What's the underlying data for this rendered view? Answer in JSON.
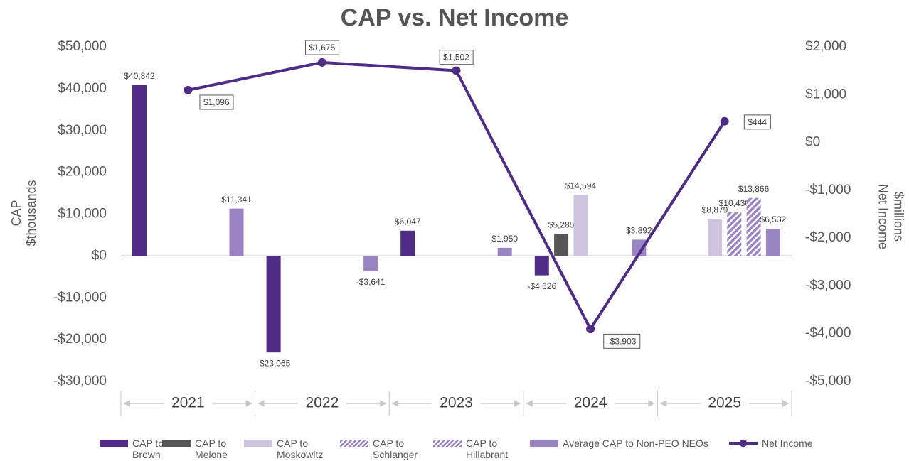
{
  "chart_data": {
    "type": "bar_line",
    "title": "CAP vs. Net Income",
    "ylabel": "CAP",
    "ylabel_unit": "$thousands",
    "y2label": "Net Income",
    "y2label_unit": "$millions",
    "categories": [
      "2021",
      "2022",
      "2023",
      "2024",
      "2025"
    ],
    "ylim": [
      -30000,
      50000
    ],
    "yticks": [
      {
        "value": 50000,
        "label": "$50,000"
      },
      {
        "value": 40000,
        "label": "$40,000"
      },
      {
        "value": 30000,
        "label": "$30,000"
      },
      {
        "value": 20000,
        "label": "$20,000"
      },
      {
        "value": 10000,
        "label": "$10,000"
      },
      {
        "value": 0,
        "label": "$0"
      },
      {
        "value": -10000,
        "label": "-$10,000"
      },
      {
        "value": -20000,
        "label": "-$20,000"
      },
      {
        "value": -30000,
        "label": "-$30,000"
      }
    ],
    "y2lim": [
      -5000,
      2000
    ],
    "y2ticks": [
      {
        "value": 2000,
        "label": "$2,000"
      },
      {
        "value": 1000,
        "label": "$1,000"
      },
      {
        "value": 0,
        "label": "$0"
      },
      {
        "value": -1000,
        "label": "-$1,000"
      },
      {
        "value": -2000,
        "label": "-$2,000"
      },
      {
        "value": -3000,
        "label": "-$3,000"
      },
      {
        "value": -4000,
        "label": "-$4,000"
      },
      {
        "value": -5000,
        "label": "-$5,000"
      }
    ],
    "series": [
      {
        "name": "CAP to Brown",
        "type": "bar",
        "color": "#4f2d87",
        "values": [
          40842,
          -23065,
          6047,
          -4626,
          null
        ],
        "value_labels": [
          "$40,842",
          "-$23,065",
          "$6,047",
          "-$4,626",
          null
        ]
      },
      {
        "name": "CAP to Melone",
        "type": "bar",
        "color": "#555555",
        "values": [
          null,
          null,
          null,
          5285,
          null
        ],
        "value_labels": [
          null,
          null,
          null,
          "$5,285",
          null
        ]
      },
      {
        "name": "CAP to Moskowitz",
        "type": "bar",
        "color": "#cec4e0",
        "values": [
          null,
          null,
          null,
          14594,
          8879
        ],
        "value_labels": [
          null,
          null,
          null,
          "$14,594",
          "$8,879"
        ]
      },
      {
        "name": "CAP to Schlanger",
        "type": "bar",
        "color": "#9a85c2",
        "hatched": true,
        "values": [
          null,
          null,
          null,
          null,
          10430
        ],
        "value_labels": [
          null,
          null,
          null,
          null,
          "$10,430"
        ]
      },
      {
        "name": "CAP to Hillabrant",
        "type": "bar",
        "color": "#9a85c2",
        "hatched": true,
        "values": [
          null,
          null,
          null,
          null,
          13866
        ],
        "value_labels": [
          null,
          null,
          null,
          null,
          "$13,866"
        ]
      },
      {
        "name": "Average CAP to Non-PEO NEOs",
        "type": "bar",
        "color": "#9a85c2",
        "values": [
          11341,
          -3641,
          1950,
          3892,
          6532
        ],
        "value_labels": [
          "$11,341",
          "-$3,641",
          "$1,950",
          "$3,892",
          "$6,532"
        ]
      },
      {
        "name": "Net Income",
        "type": "line",
        "axis": "y2",
        "color": "#4f2d87",
        "values": [
          1096,
          1675,
          1502,
          -3903,
          444
        ],
        "value_labels": [
          "$1,096",
          "$1,675",
          "$1,502",
          "-$3,903",
          "$444"
        ]
      }
    ]
  }
}
